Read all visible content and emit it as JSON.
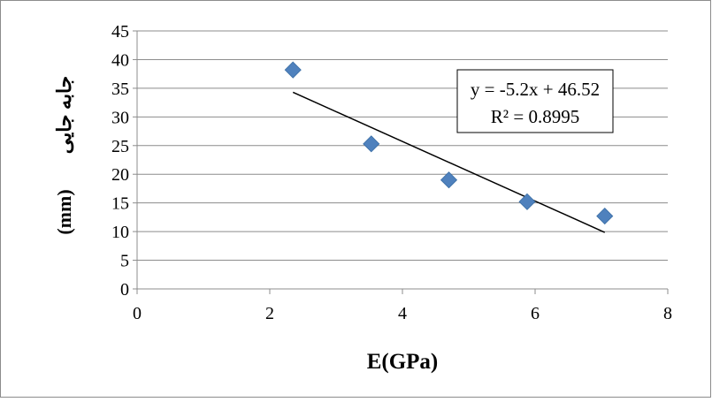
{
  "chart_data": {
    "type": "scatter",
    "xlabel": "E(GPa)",
    "ylabel": "جابه جایی (mm)",
    "ylabel_parts": {
      "text": "جابه جایی",
      "unit": "(mm)"
    },
    "xlim": [
      0,
      8
    ],
    "ylim": [
      0,
      45
    ],
    "x_ticks": [
      0,
      2,
      4,
      6,
      8
    ],
    "y_ticks": [
      0,
      5,
      10,
      15,
      20,
      25,
      30,
      35,
      40,
      45
    ],
    "grid": {
      "horizontal": true,
      "vertical": false
    },
    "legend": "none",
    "series": [
      {
        "x": [
          2.35,
          3.53,
          4.7,
          5.88,
          7.05
        ],
        "y": [
          38.2,
          25.3,
          19.0,
          15.2,
          12.7
        ],
        "color": "#4f81bd",
        "marker": "diamond"
      }
    ],
    "trendline": {
      "type": "linear",
      "slope": -5.2,
      "intercept": 46.52,
      "x_range": [
        2.35,
        7.05
      ],
      "equation": "y = -5.2x + 46.52",
      "r_squared": "R² = 0.8995",
      "color": "#000000"
    },
    "colors": {
      "grid": "#8c8c8c",
      "frame": "#8c8c8c"
    }
  }
}
